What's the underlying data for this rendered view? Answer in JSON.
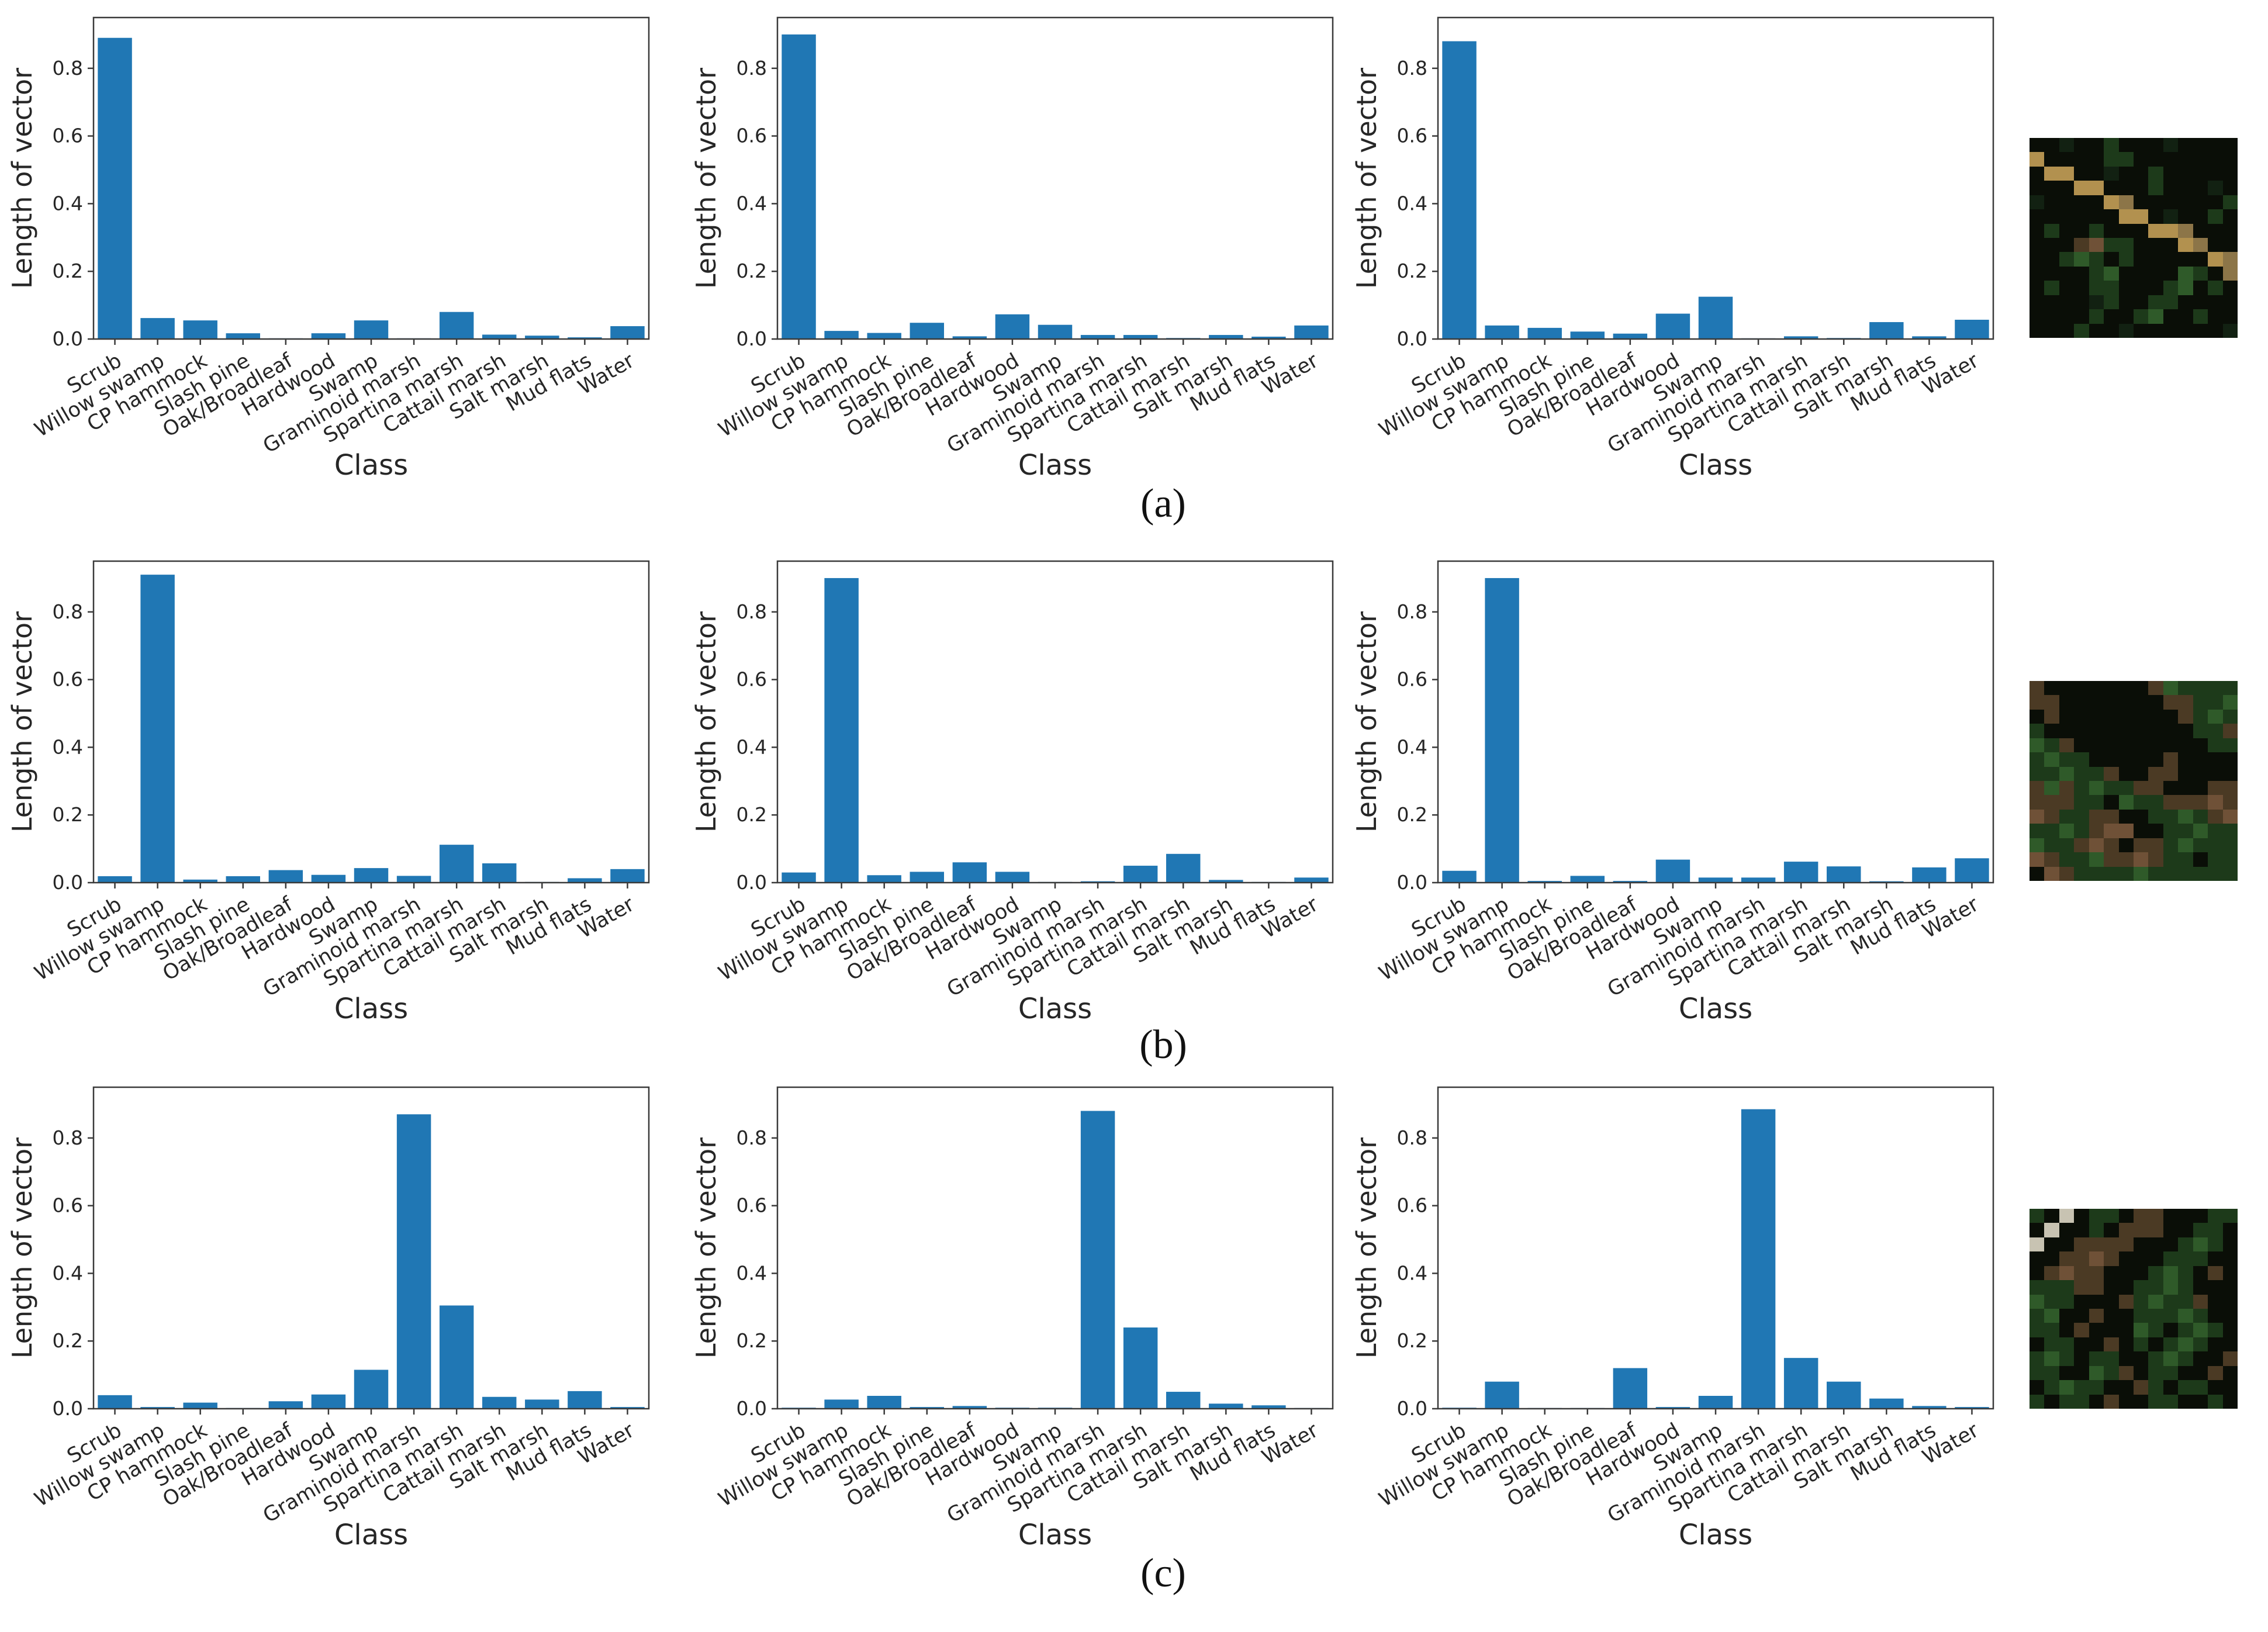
{
  "figure": {
    "background": "#ffffff",
    "bar_color": "#2077b4",
    "spine_color": "#3a3a3a",
    "xlabel": "Class",
    "ylabel": "Length of vector",
    "yticks": [
      0.0,
      0.2,
      0.4,
      0.6,
      0.8
    ],
    "ylim": [
      0,
      0.95
    ],
    "xtick_rotation_deg": -30
  },
  "captions": [
    "(a)",
    "(b)",
    "(c)"
  ],
  "chart_data": [
    {
      "id": "a1",
      "row": "a",
      "col": 1,
      "type": "bar",
      "title": "",
      "xlabel": "Class",
      "ylabel": "Length of vector",
      "ylim": [
        0,
        0.95
      ],
      "categories": [
        "Scrub",
        "Willow swamp",
        "CP hammock",
        "Slash pine",
        "Oak/Broadleaf",
        "Hardwood",
        "Swamp",
        "Graminoid marsh",
        "Spartina marsh",
        "Cattail marsh",
        "Salt marsh",
        "Mud flats",
        "Water"
      ],
      "values": [
        0.89,
        0.062,
        0.055,
        0.017,
        0.002,
        0.017,
        0.055,
        0.002,
        0.08,
        0.013,
        0.01,
        0.005,
        0.038
      ]
    },
    {
      "id": "a2",
      "row": "a",
      "col": 2,
      "type": "bar",
      "title": "",
      "xlabel": "Class",
      "ylabel": "Length of vector",
      "ylim": [
        0,
        0.95
      ],
      "categories": [
        "Scrub",
        "Willow swamp",
        "CP hammock",
        "Slash pine",
        "Oak/Broadleaf",
        "Hardwood",
        "Swamp",
        "Graminoid marsh",
        "Spartina marsh",
        "Cattail marsh",
        "Salt marsh",
        "Mud flats",
        "Water"
      ],
      "values": [
        0.9,
        0.024,
        0.018,
        0.048,
        0.008,
        0.073,
        0.042,
        0.012,
        0.012,
        0.003,
        0.012,
        0.007,
        0.04
      ]
    },
    {
      "id": "a3",
      "row": "a",
      "col": 3,
      "type": "bar",
      "title": "",
      "xlabel": "Class",
      "ylabel": "Length of vector",
      "ylim": [
        0,
        0.95
      ],
      "categories": [
        "Scrub",
        "Willow swamp",
        "CP hammock",
        "Slash pine",
        "Oak/Broadleaf",
        "Hardwood",
        "Swamp",
        "Graminoid marsh",
        "Spartina marsh",
        "Cattail marsh",
        "Salt marsh",
        "Mud flats",
        "Water"
      ],
      "values": [
        0.88,
        0.04,
        0.033,
        0.022,
        0.016,
        0.075,
        0.125,
        0.002,
        0.008,
        0.003,
        0.05,
        0.008,
        0.057
      ]
    },
    {
      "id": "b1",
      "row": "b",
      "col": 1,
      "type": "bar",
      "title": "",
      "xlabel": "Class",
      "ylabel": "Length of vector",
      "ylim": [
        0,
        0.95
      ],
      "categories": [
        "Scrub",
        "Willow swamp",
        "CP hammock",
        "Slash pine",
        "Oak/Broadleaf",
        "Hardwood",
        "Swamp",
        "Graminoid marsh",
        "Spartina marsh",
        "Cattail marsh",
        "Salt marsh",
        "Mud flats",
        "Water"
      ],
      "values": [
        0.019,
        0.91,
        0.009,
        0.019,
        0.037,
        0.023,
        0.043,
        0.02,
        0.112,
        0.057,
        0.002,
        0.013,
        0.04
      ]
    },
    {
      "id": "b2",
      "row": "b",
      "col": 2,
      "type": "bar",
      "title": "",
      "xlabel": "Class",
      "ylabel": "Length of vector",
      "ylim": [
        0,
        0.95
      ],
      "categories": [
        "Scrub",
        "Willow swamp",
        "CP hammock",
        "Slash pine",
        "Oak/Broadleaf",
        "Hardwood",
        "Swamp",
        "Graminoid marsh",
        "Spartina marsh",
        "Cattail marsh",
        "Salt marsh",
        "Mud flats",
        "Water"
      ],
      "values": [
        0.03,
        0.9,
        0.022,
        0.032,
        0.06,
        0.032,
        0.001,
        0.004,
        0.05,
        0.085,
        0.008,
        0.001,
        0.015
      ]
    },
    {
      "id": "b3",
      "row": "b",
      "col": 3,
      "type": "bar",
      "title": "",
      "xlabel": "Class",
      "ylabel": "Length of vector",
      "ylim": [
        0,
        0.95
      ],
      "categories": [
        "Scrub",
        "Willow swamp",
        "CP hammock",
        "Slash pine",
        "Oak/Broadleaf",
        "Hardwood",
        "Swamp",
        "Graminoid marsh",
        "Spartina marsh",
        "Cattail marsh",
        "Salt marsh",
        "Mud flats",
        "Water"
      ],
      "values": [
        0.035,
        0.9,
        0.005,
        0.02,
        0.005,
        0.068,
        0.015,
        0.015,
        0.062,
        0.048,
        0.004,
        0.045,
        0.072
      ]
    },
    {
      "id": "c1",
      "row": "c",
      "col": 1,
      "type": "bar",
      "title": "",
      "xlabel": "Class",
      "ylabel": "Length of vector",
      "ylim": [
        0,
        0.95
      ],
      "categories": [
        "Scrub",
        "Willow swamp",
        "CP hammock",
        "Slash pine",
        "Oak/Broadleaf",
        "Hardwood",
        "Swamp",
        "Graminoid marsh",
        "Spartina marsh",
        "Cattail marsh",
        "Salt marsh",
        "Mud flats",
        "Water"
      ],
      "values": [
        0.04,
        0.005,
        0.018,
        0.001,
        0.022,
        0.042,
        0.115,
        0.87,
        0.305,
        0.035,
        0.027,
        0.052,
        0.005
      ]
    },
    {
      "id": "c2",
      "row": "c",
      "col": 2,
      "type": "bar",
      "title": "",
      "xlabel": "Class",
      "ylabel": "Length of vector",
      "ylim": [
        0,
        0.95
      ],
      "categories": [
        "Scrub",
        "Willow swamp",
        "CP hammock",
        "Slash pine",
        "Oak/Broadleaf",
        "Hardwood",
        "Swamp",
        "Graminoid marsh",
        "Spartina marsh",
        "Cattail marsh",
        "Salt marsh",
        "Mud flats",
        "Water"
      ],
      "values": [
        0.003,
        0.027,
        0.038,
        0.005,
        0.008,
        0.003,
        0.003,
        0.88,
        0.24,
        0.05,
        0.015,
        0.01,
        0.001
      ]
    },
    {
      "id": "c3",
      "row": "c",
      "col": 3,
      "type": "bar",
      "title": "",
      "xlabel": "Class",
      "ylabel": "Length of vector",
      "ylim": [
        0,
        0.95
      ],
      "categories": [
        "Scrub",
        "Willow swamp",
        "CP hammock",
        "Slash pine",
        "Oak/Broadleaf",
        "Hardwood",
        "Swamp",
        "Graminoid marsh",
        "Spartina marsh",
        "Cattail marsh",
        "Salt marsh",
        "Mud flats",
        "Water"
      ],
      "values": [
        0.003,
        0.08,
        0.001,
        0.001,
        0.12,
        0.005,
        0.038,
        0.885,
        0.15,
        0.08,
        0.03,
        0.008,
        0.005
      ]
    }
  ],
  "patches": [
    {
      "id": "patch-a",
      "description": "dark green/black satellite image patch with diagonal tan streak from upper-left",
      "palette": {
        "K": "#0a0e07",
        "D": "#122112",
        "G": "#1d3a1a",
        "g": "#2f5a29",
        "B": "#4b3a24",
        "b": "#6f5137",
        "T": "#b2914f",
        "t": "#8c7548",
        "W": "#c8c3b2"
      },
      "pixels": [
        "KKDKKGKKKDKKKK",
        "TKKKKGGKKKKKKK",
        "KTTKKDKKGKKKKK",
        "KKKTTKKKGKKKDK",
        "DKKKKTtKKKKKKG",
        "KKKKKKTTKDKKGK",
        "KGKKGKKKTTtKKK",
        "KKKBbGGKKKTtKK",
        "KKGgGKGKKKKKTt",
        "KKKKGgKKKKgGKt",
        "KGKKGGKKKGgKGK",
        "KKKKDGKKGGKKKK",
        "KKKKGKKGgKKGKK",
        "KKKGKKDKKKKKKD"
      ]
    },
    {
      "id": "patch-b",
      "description": "satellite patch: black upper region, diagonal green band, brown and green mottling below",
      "palette": {
        "K": "#0a0e07",
        "D": "#122112",
        "G": "#1d3a1a",
        "g": "#2f5a29",
        "B": "#4b3a24",
        "b": "#6f5137",
        "T": "#b2914f",
        "t": "#8c7548",
        "W": "#c8c3b2"
      },
      "pixels": [
        "BKKKKKKKBgGGGG",
        "BBKKKKKKKBBGGg",
        "KBKKKKKKKKBGgG",
        "GKKKKKKKKKKGGB",
        "gGBKKKKKKKKKGG",
        "GgGGKKKKKBKKKK",
        "GGgGGBKKBBKKKK",
        "BgBGgGGBBKKKBB",
        "BBBGGKgGGBBBbB",
        "bBGGBBKKGGgGBb",
        "GGgGBbbKKGGgGG",
        "gGGBbBKBBGgGGG",
        "bBGGgBBbBGGKGG",
        "KbBGGGGgGGGGGG"
      ]
    },
    {
      "id": "patch-c",
      "description": "satellite patch: light gray diagonal streak top-left, dark brown blotch, green mottling",
      "palette": {
        "K": "#0a0e07",
        "D": "#122112",
        "G": "#1d3a1a",
        "g": "#2f5a29",
        "B": "#4b3a24",
        "b": "#6f5137",
        "T": "#b2914f",
        "t": "#8c7548",
        "W": "#c8c3b2"
      },
      "pixels": [
        "GKWKGGKBBKKKGG",
        "KWKKGKBBBKKGGK",
        "WKKBBBBKKKGgGK",
        "KKBBbBKKKGGGKK",
        "KBbBBKKKGgGKBK",
        "GGGBBKKGGgGKKK",
        "gGGKKKBGgGGBKK",
        "GgKKBKKGGGgGKK",
        "GGKBKKKgGKGgGK",
        "KGGKKBKGKGgGKK",
        "GgGKGGKKGgGKKB",
        "GGKKgGBKGGKKBK",
        "KGgGGKKBGKGGKK",
        "GKGGKBKKGGKKGK"
      ]
    }
  ]
}
